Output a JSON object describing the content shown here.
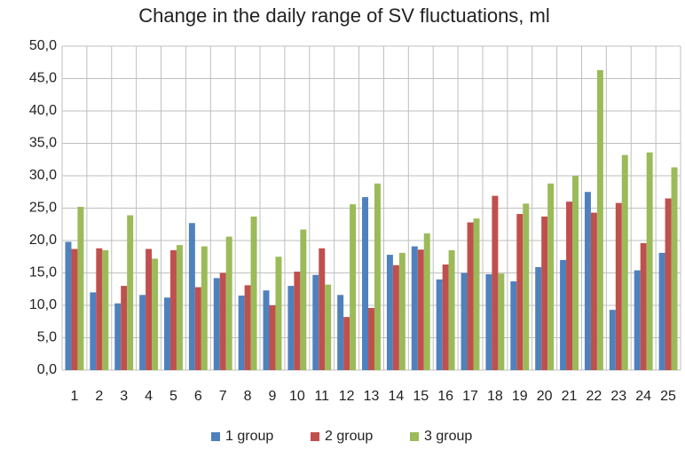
{
  "chart_data": {
    "type": "bar",
    "title": "Change in the daily range of SV fluctuations, ml",
    "categories": [
      "1",
      "2",
      "3",
      "4",
      "5",
      "6",
      "7",
      "8",
      "9",
      "10",
      "11",
      "12",
      "13",
      "14",
      "15",
      "16",
      "17",
      "18",
      "19",
      "20",
      "21",
      "22",
      "23",
      "24",
      "25"
    ],
    "series": [
      {
        "name": "1 group",
        "color": "#4f81bd",
        "values": [
          19.8,
          12,
          10.3,
          11.6,
          11.2,
          22.7,
          14.2,
          11.5,
          12.3,
          13,
          14.7,
          11.6,
          26.7,
          17.8,
          19.1,
          14,
          15,
          14.8,
          13.7,
          15.9,
          17,
          27.5,
          9.3,
          15.4,
          18.1
        ]
      },
      {
        "name": "2 group",
        "color": "#c0504d",
        "values": [
          18.7,
          18.8,
          13,
          18.7,
          18.5,
          12.8,
          15,
          13.1,
          10,
          15.2,
          18.8,
          8.2,
          9.6,
          16.2,
          18.6,
          16.3,
          22.8,
          26.9,
          24.1,
          23.7,
          26,
          24.3,
          25.8,
          19.6,
          26.5
        ]
      },
      {
        "name": "3 group",
        "color": "#9bbb59",
        "values": [
          25.2,
          18.5,
          23.9,
          17.2,
          19.3,
          19.1,
          20.6,
          23.7,
          17.5,
          21.7,
          13.2,
          25.6,
          28.8,
          18.1,
          21.1,
          18.5,
          23.4,
          14.9,
          25.7,
          28.8,
          30,
          46.3,
          33.2,
          33.6,
          31.3
        ]
      }
    ],
    "ylim": [
      0,
      50
    ],
    "yticks": [
      {
        "value": 0,
        "label": "0,0"
      },
      {
        "value": 5,
        "label": "5,0"
      },
      {
        "value": 10,
        "label": "10,0"
      },
      {
        "value": 15,
        "label": "15,0"
      },
      {
        "value": 20,
        "label": "20,0"
      },
      {
        "value": 25,
        "label": "25,0"
      },
      {
        "value": 30,
        "label": "30,0"
      },
      {
        "value": 35,
        "label": "35,0"
      },
      {
        "value": 40,
        "label": "40,0"
      },
      {
        "value": 45,
        "label": "45,0"
      },
      {
        "value": 50,
        "label": "50,0"
      }
    ],
    "grid": true,
    "legend": "bottom"
  }
}
